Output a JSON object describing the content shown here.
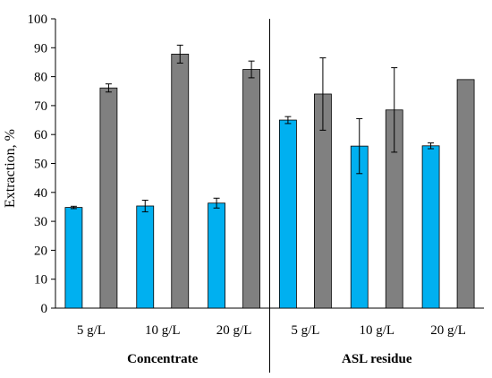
{
  "chart_data": {
    "type": "bar",
    "ylabel": "Extraction, %",
    "ylim": [
      0,
      100
    ],
    "yticks": [
      "0",
      "10",
      "20",
      "30",
      "40",
      "50",
      "60",
      "70",
      "80",
      "90",
      "100"
    ],
    "groups": [
      {
        "label": "Concentrate",
        "categories": [
          "5 g/L",
          "10 g/L",
          "20 g/L"
        ]
      },
      {
        "label": "ASL residue",
        "categories": [
          "5 g/L",
          "10 g/L",
          "20 g/L"
        ]
      }
    ],
    "categories": [
      "5 g/L",
      "10 g/L",
      "20 g/L",
      "5 g/L",
      "10 g/L",
      "20 g/L"
    ],
    "series": [
      {
        "color": "#00B0F0",
        "values": [
          34.8,
          35.3,
          36.3,
          65.0,
          56.0,
          56.1
        ],
        "errors": [
          0.4,
          2.0,
          1.7,
          1.2,
          9.5,
          1.0
        ]
      },
      {
        "color": "#808080",
        "values": [
          76.1,
          87.8,
          82.5,
          74.0,
          68.5,
          79.0
        ],
        "errors": [
          1.4,
          3.1,
          2.9,
          12.5,
          14.6,
          0.0
        ]
      }
    ],
    "grid": false,
    "legend": "none"
  }
}
